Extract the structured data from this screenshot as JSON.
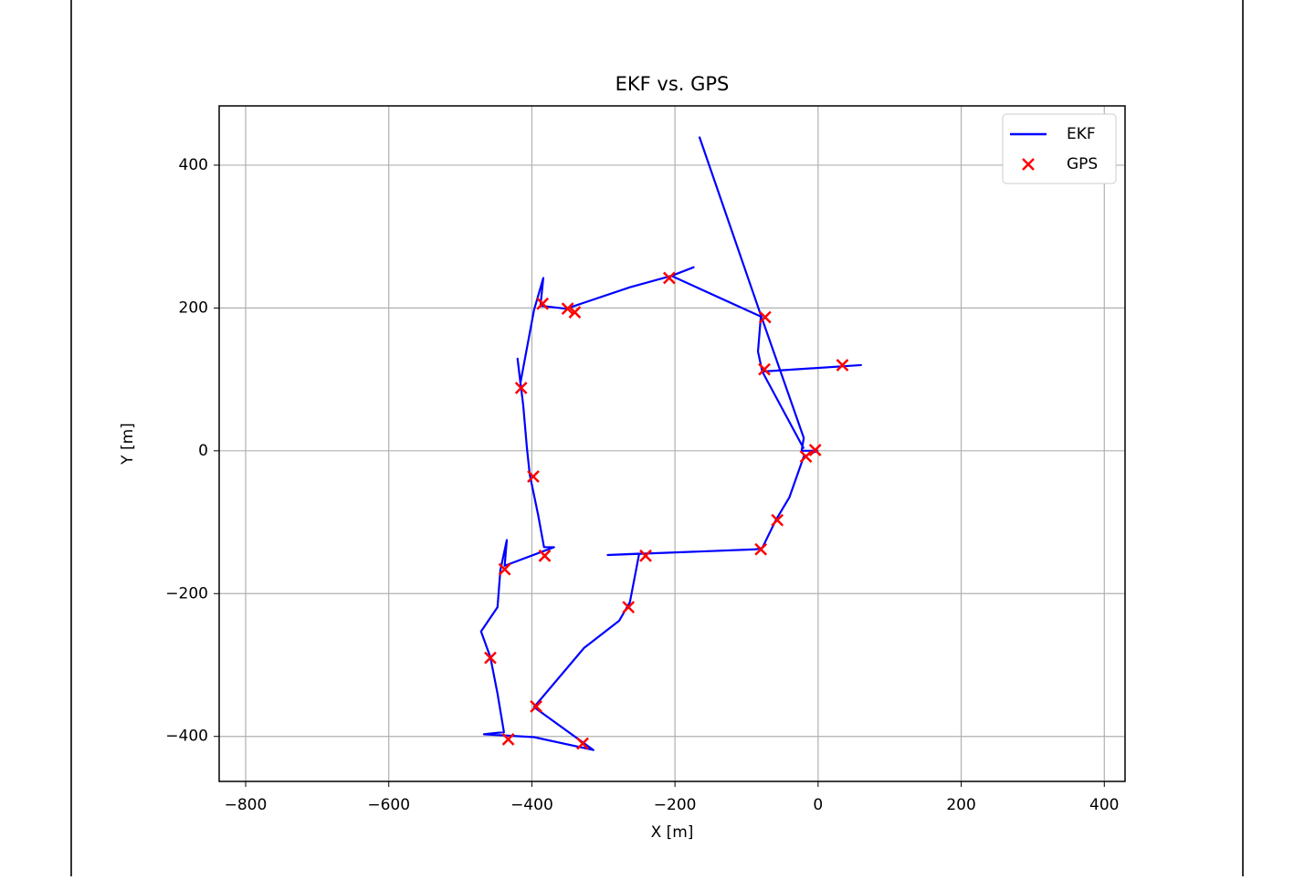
{
  "chart_data": {
    "type": "line",
    "title": "EKF vs. GPS",
    "xlabel": "X [m]",
    "ylabel": "Y [m]",
    "xlim": [
      -837,
      429
    ],
    "ylim": [
      -463,
      483
    ],
    "xticks": [
      {
        "value": -800,
        "label": "−800"
      },
      {
        "value": -600,
        "label": "−600"
      },
      {
        "value": -400,
        "label": "−400"
      },
      {
        "value": -200,
        "label": "−200"
      },
      0,
      200,
      400
    ],
    "yticks": [
      {
        "value": -400,
        "label": "−400"
      },
      {
        "value": -200,
        "label": "−200"
      },
      0,
      200,
      400
    ],
    "grid": true,
    "legend": "upper right",
    "series": [
      {
        "name": "EKF",
        "color": "#0000ff",
        "marker": "line",
        "x": [
          -166,
          -80,
          -20,
          -23,
          -1,
          -20,
          -40,
          -59,
          -78,
          -87,
          -294,
          -250,
          -263,
          -278,
          -327,
          -397,
          -314,
          -397,
          -467,
          -439,
          -448,
          -458,
          -471,
          -448,
          -444,
          -435,
          -438,
          -369,
          -383,
          -391,
          -403,
          -407,
          -412,
          -420,
          -416,
          -397,
          -384,
          -388,
          -352,
          -263,
          -205,
          -174,
          -205,
          -80,
          -84,
          -78,
          60,
          -78,
          -20
        ],
        "y": [
          440,
          190,
          18,
          0,
          0,
          -8,
          -65,
          -97,
          -136,
          -138,
          -146,
          -144,
          -212,
          -238,
          -276,
          -359,
          -419,
          -401,
          -397,
          -394,
          -340,
          -289,
          -253,
          -219,
          -167,
          -125,
          -161,
          -135,
          -135,
          -91,
          -33,
          5,
          63,
          129,
          95,
          197,
          242,
          203,
          199,
          229,
          245,
          257,
          245,
          188,
          139,
          111,
          120,
          111,
          3
        ]
      },
      {
        "name": "GPS",
        "color": "#ff0000",
        "marker": "x",
        "x": [
          -74,
          -75,
          34,
          -4,
          -17,
          -57,
          -80,
          -241,
          -265,
          -394,
          -329,
          -433,
          -458,
          -438,
          -382,
          -398,
          -415,
          -385,
          -350,
          -340,
          -208
        ],
        "y": [
          187,
          114,
          120,
          1,
          -8,
          -97,
          -138,
          -147,
          -219,
          -358,
          -410,
          -404,
          -290,
          -166,
          -147,
          -36,
          88,
          206,
          199,
          194,
          242
        ]
      }
    ]
  }
}
